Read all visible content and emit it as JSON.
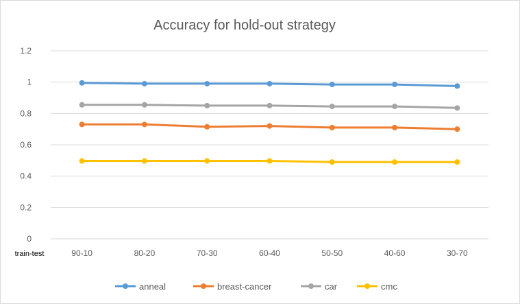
{
  "chart_data": {
    "type": "line",
    "title": "Accuracy for hold-out strategy",
    "xlabel": "train-test",
    "ylabel": "",
    "categories": [
      "90-10",
      "80-20",
      "70-30",
      "60-40",
      "50-50",
      "40-60",
      "30-70"
    ],
    "ylim": [
      0,
      1.2
    ],
    "yticks": [
      "0",
      "0.2",
      "0.4",
      "0.6",
      "0.8",
      "1",
      "1.2"
    ],
    "grid": true,
    "legend_position": "bottom",
    "series": [
      {
        "name": "anneal",
        "color": "#5b9bd5",
        "values": [
          0.995,
          0.99,
          0.99,
          0.99,
          0.985,
          0.985,
          0.975
        ]
      },
      {
        "name": "breast-cancer",
        "color": "#ed7d31",
        "values": [
          0.73,
          0.73,
          0.715,
          0.72,
          0.71,
          0.71,
          0.7
        ]
      },
      {
        "name": "car",
        "color": "#a5a5a5",
        "values": [
          0.855,
          0.855,
          0.85,
          0.85,
          0.845,
          0.845,
          0.835
        ]
      },
      {
        "name": "cmc",
        "color": "#ffc000",
        "values": [
          0.497,
          0.497,
          0.497,
          0.497,
          0.49,
          0.49,
          0.49
        ]
      }
    ]
  }
}
